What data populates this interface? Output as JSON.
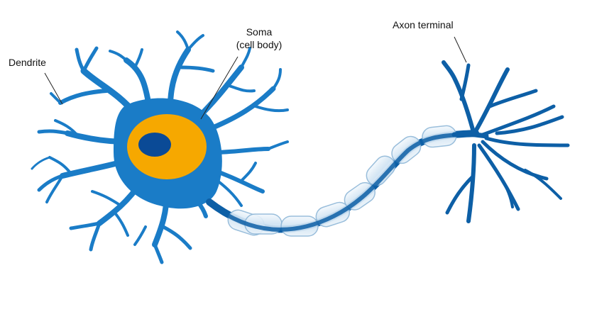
{
  "labels": {
    "dendrite": "Dendrite",
    "soma_line1": "Soma",
    "soma_line2": "(cell body)",
    "axon_terminal": "Axon terminal"
  },
  "colors": {
    "neuron_blue": "#1a7cc7",
    "neuron_light": "#6fb6ea",
    "axon_dark": "#0d5fa6",
    "soma_orange": "#f6a800",
    "nucleus": "#0a4a96",
    "myelin_fill": "#dcebf7",
    "myelin_edge": "#8fb7d8",
    "leader_line": "#222222"
  }
}
